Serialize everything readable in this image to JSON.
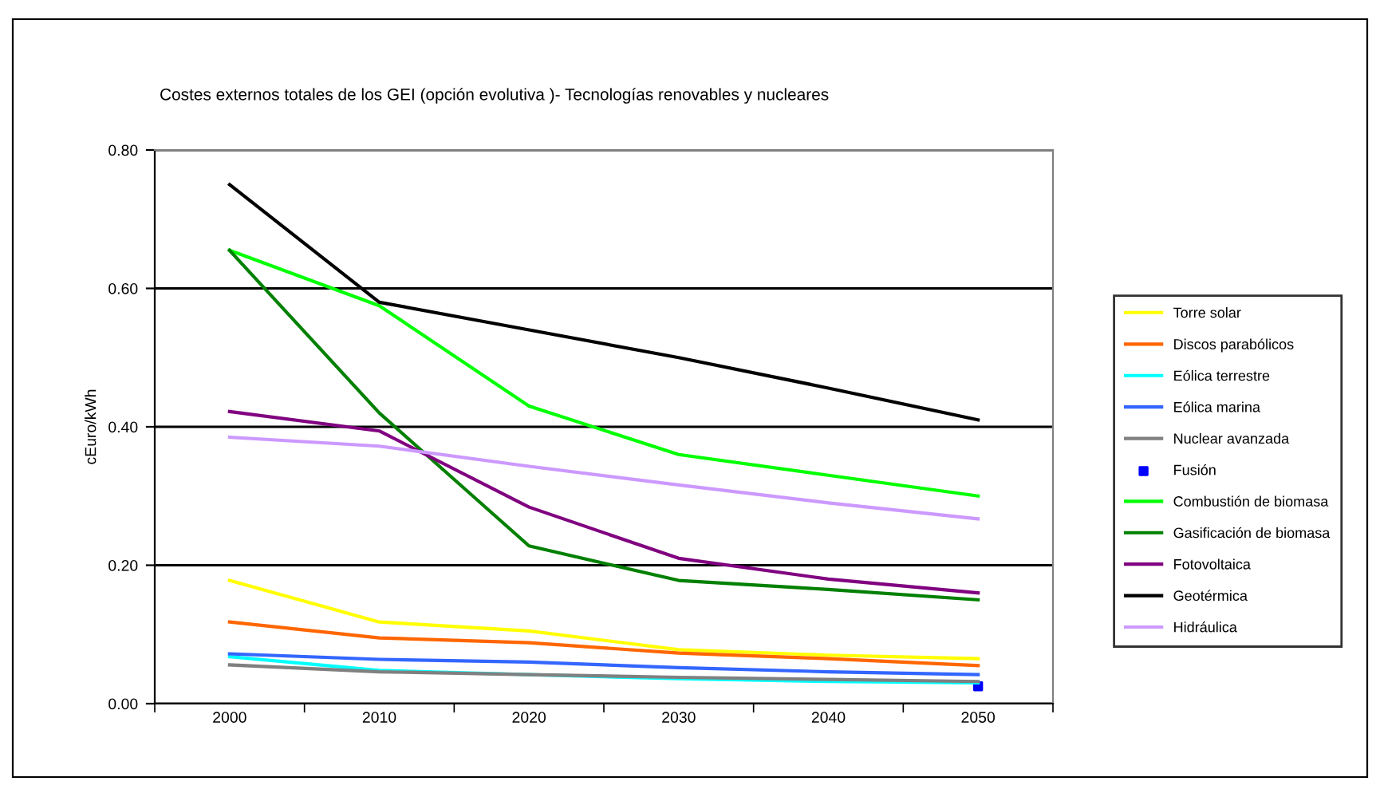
{
  "chart_data": {
    "type": "line",
    "title": "Costes externos totales de los GEI (opción evolutiva )- Tecnologías renovables y nucleares",
    "ylabel": "cEuro/kWh",
    "categories": [
      "2000",
      "2010",
      "2020",
      "2030",
      "2040",
      "2050"
    ],
    "ylim": [
      0,
      0.8
    ],
    "yticks": [
      {
        "value": 0,
        "label": "0.00"
      },
      {
        "value": 0.2,
        "label": "0.20"
      },
      {
        "value": 0.4,
        "label": "0.40"
      },
      {
        "value": 0.6,
        "label": "0.60"
      },
      {
        "value": 0.8,
        "label": "0.80"
      }
    ],
    "grid": "y",
    "legend": "right",
    "marker": "none",
    "series": [
      {
        "name": "Torre solar",
        "color": "#ffff00",
        "values": [
          0.178,
          0.118,
          0.105,
          0.078,
          0.07,
          0.065
        ]
      },
      {
        "name": "Discos parabólicos",
        "color": "#ff6600",
        "values": [
          0.118,
          0.095,
          0.088,
          0.073,
          0.065,
          0.055
        ]
      },
      {
        "name": "Eólica terrestre",
        "color": "#00ffff",
        "values": [
          0.068,
          0.048,
          0.042,
          0.036,
          0.032,
          0.03
        ]
      },
      {
        "name": "Eólica marina",
        "color": "#3366ff",
        "values": [
          0.072,
          0.064,
          0.06,
          0.052,
          0.046,
          0.042
        ]
      },
      {
        "name": "Nuclear avanzada",
        "color": "#808080",
        "values": [
          0.056,
          0.046,
          0.042,
          0.038,
          0.035,
          0.032
        ]
      },
      {
        "name": "Fusión",
        "color": "#0000ff",
        "type": "scatter",
        "marker": "square",
        "values": [
          null,
          null,
          null,
          null,
          null,
          0.025
        ]
      },
      {
        "name": "Combustión de biomasa",
        "color": "#00ff00",
        "values": [
          0.655,
          0.575,
          0.43,
          0.36,
          0.33,
          0.3
        ]
      },
      {
        "name": "Gasificación de biomasa",
        "color": "#008000",
        "values": [
          0.655,
          0.42,
          0.228,
          0.178,
          0.165,
          0.15
        ]
      },
      {
        "name": "Fotovoltaica",
        "color": "#800080",
        "values": [
          0.422,
          0.394,
          0.284,
          0.21,
          0.18,
          0.16
        ]
      },
      {
        "name": "Geotérmica",
        "color": "#000000",
        "values": [
          0.75,
          0.58,
          0.54,
          0.5,
          0.456,
          0.41
        ]
      },
      {
        "name": "Hidráulica",
        "color": "#cc99ff",
        "values": [
          0.385,
          0.372,
          0.343,
          0.316,
          0.29,
          0.267
        ]
      }
    ]
  }
}
